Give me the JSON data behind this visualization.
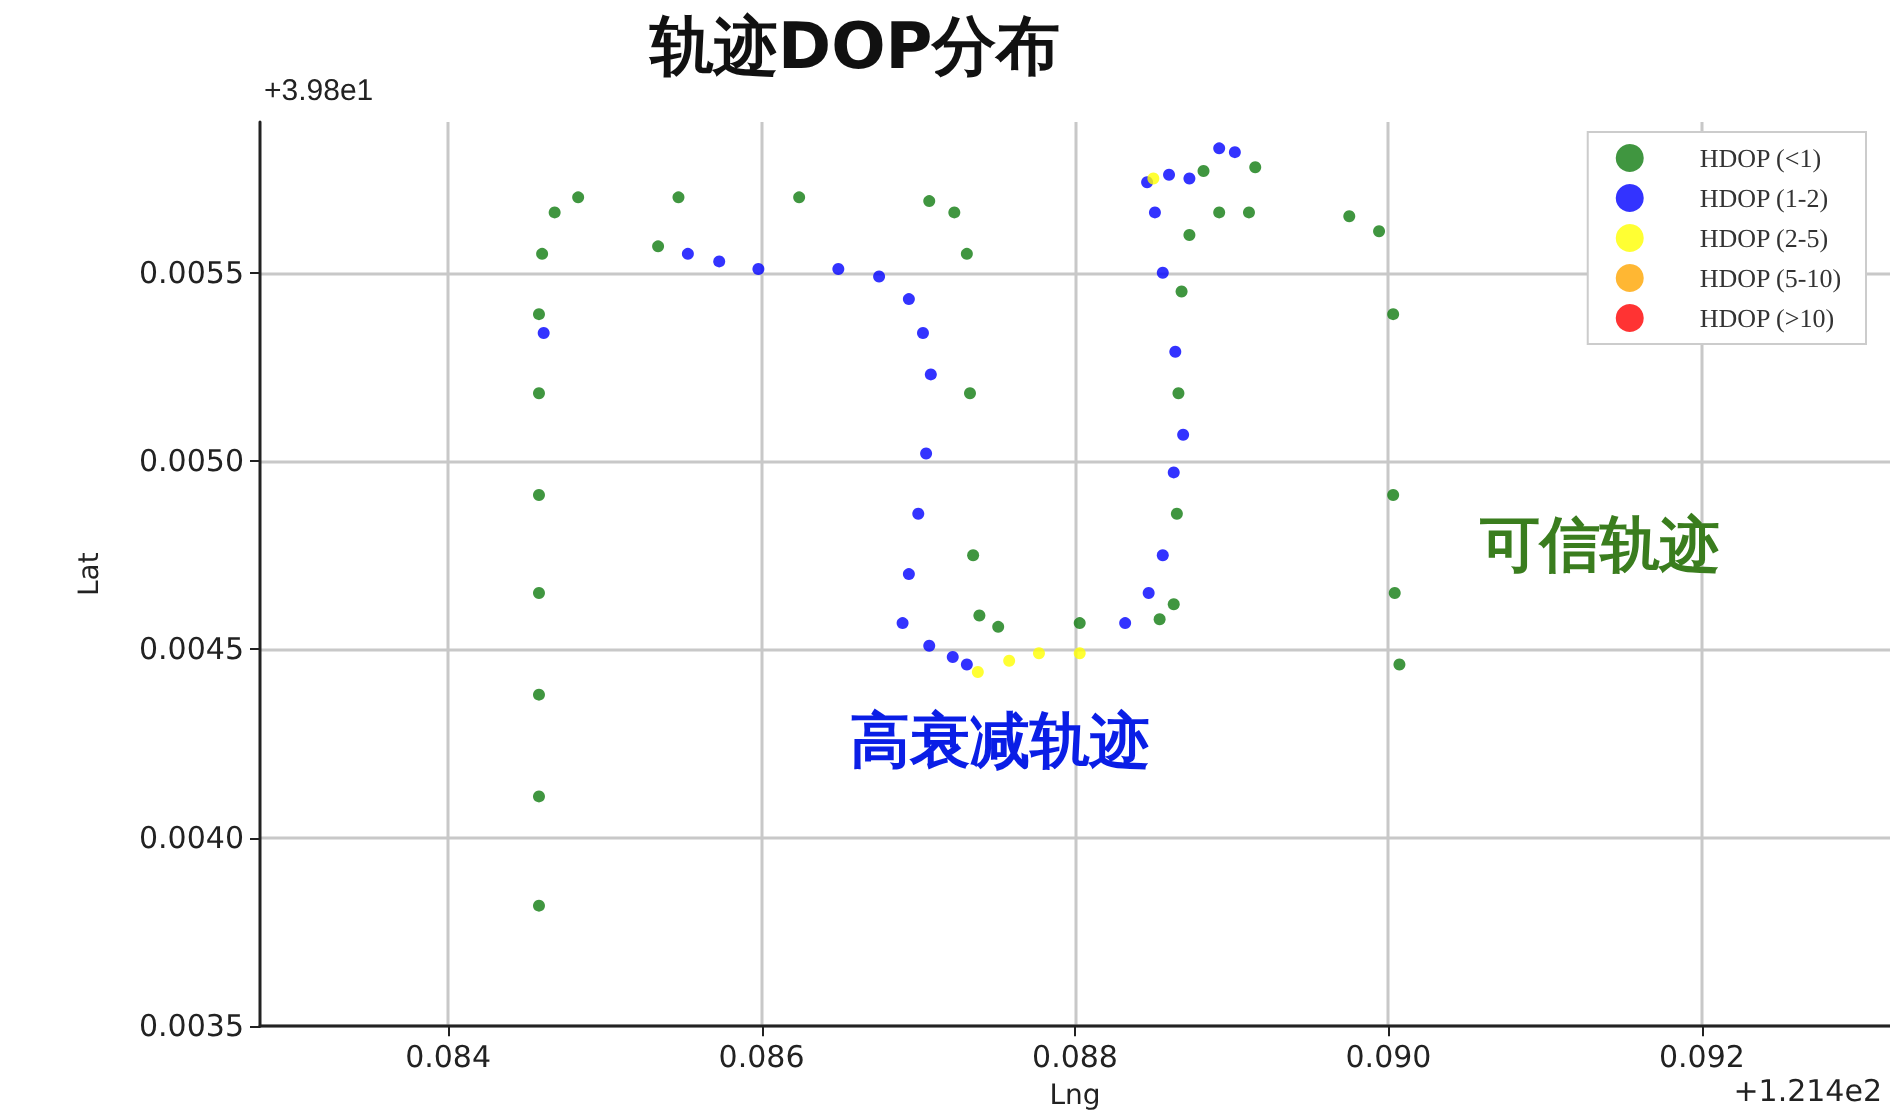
{
  "chart_data": {
    "type": "scatter",
    "title": "轨迹DOP分布",
    "xlabel": "Lng",
    "ylabel": "Lat",
    "xlim": [
      0.0828,
      0.0932
    ],
    "xticks": [
      0.084,
      0.086,
      0.088,
      {
        "value": 0.09,
        "label": "0.090"
      },
      0.092
    ],
    "ylim": [
      0.0035,
      0.0059
    ],
    "yticks": [
      0.0035,
      {
        "value": 0.004,
        "label": "0.0040"
      },
      0.0045,
      {
        "value": 0.005,
        "label": "0.0050"
      },
      0.0055
    ],
    "grid": true,
    "legend": "top right",
    "marker": "circle",
    "annotations": [
      "+3.98e1",
      "+1.214e2",
      "高衰减轨迹",
      "可信轨迹"
    ],
    "series": [
      {
        "name": "HDOP (<1)",
        "color": "#107c10",
        "x": [
          0.08458,
          0.08458,
          0.08458,
          0.08458,
          0.08458,
          0.08458,
          0.08458,
          0.0846,
          0.08468,
          0.08483,
          0.08547,
          0.08624,
          0.08707,
          0.08723,
          0.08731,
          0.08733,
          0.08735,
          0.08739,
          0.08751,
          0.08803,
          0.08854,
          0.08863,
          0.08865,
          0.08866,
          0.08868,
          0.08873,
          0.08892,
          0.08911,
          0.08975,
          0.08994,
          0.09003,
          0.09003,
          0.09004,
          0.09007,
          0.08534,
          0.08882,
          0.08915
        ],
        "values": [
          0.00382,
          0.00411,
          0.00438,
          0.00465,
          0.00491,
          0.00518,
          0.00539,
          0.00555,
          0.00566,
          0.0057,
          0.0057,
          0.0057,
          0.00569,
          0.00566,
          0.00555,
          0.00518,
          0.00475,
          0.00459,
          0.00456,
          0.00457,
          0.00458,
          0.00462,
          0.00486,
          0.00518,
          0.00545,
          0.0056,
          0.00566,
          0.00566,
          0.00565,
          0.00561,
          0.00539,
          0.00491,
          0.00465,
          0.00446,
          0.00557,
          0.00577,
          0.00578
        ]
      },
      {
        "name": "HDOP (1-2)",
        "color": "#0000ff",
        "x": [
          0.08461,
          0.08553,
          0.08573,
          0.08598,
          0.08649,
          0.08675,
          0.08694,
          0.08703,
          0.08708,
          0.08705,
          0.087,
          0.08694,
          0.0869,
          0.08707,
          0.08722,
          0.08731,
          0.08832,
          0.08847,
          0.08856,
          0.08863,
          0.08869,
          0.08864,
          0.08856,
          0.08851,
          0.08846,
          0.0886,
          0.08873,
          0.08892,
          0.08902
        ],
        "values": [
          0.00534,
          0.00555,
          0.00553,
          0.00551,
          0.00551,
          0.00549,
          0.00543,
          0.00534,
          0.00523,
          0.00502,
          0.00486,
          0.0047,
          0.00457,
          0.00451,
          0.00448,
          0.00446,
          0.00457,
          0.00465,
          0.00475,
          0.00497,
          0.00507,
          0.00529,
          0.0055,
          0.00566,
          0.00574,
          0.00576,
          0.00575,
          0.00583,
          0.00582
        ]
      },
      {
        "name": "HDOP (2-5)",
        "color": "#ffff00",
        "x": [
          0.08738,
          0.08758,
          0.08777,
          0.08803,
          0.0885
        ],
        "values": [
          0.00444,
          0.00447,
          0.00449,
          0.00449,
          0.00575
        ]
      },
      {
        "name": "HDOP (5-10)",
        "color": "#ffa500"
      },
      {
        "name": "HDOP (>10)",
        "color": "#ff0000"
      }
    ]
  }
}
